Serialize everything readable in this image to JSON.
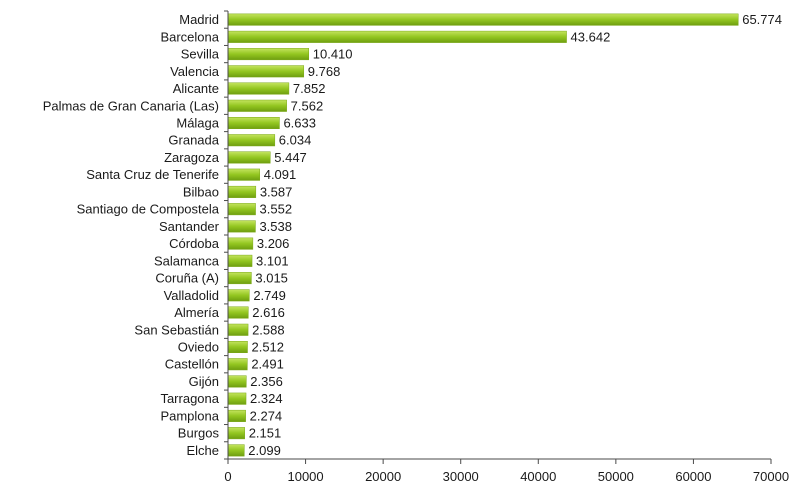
{
  "chart_data": {
    "type": "bar",
    "orientation": "horizontal",
    "title": "",
    "xlabel": "",
    "ylabel": "",
    "xlim": [
      0,
      70000
    ],
    "xticks": [
      0,
      10000,
      20000,
      30000,
      40000,
      50000,
      60000,
      70000
    ],
    "grid": false,
    "legend": "none",
    "bar_color": "#8cc11a",
    "categories": [
      "Madrid",
      "Barcelona",
      "Sevilla",
      "Valencia",
      "Alicante",
      "Palmas de Gran Canaria (Las)",
      "Málaga",
      "Granada",
      "Zaragoza",
      "Santa Cruz de Tenerife",
      "Bilbao",
      "Santiago de Compostela",
      "Santander",
      "Córdoba",
      "Salamanca",
      "Coruña (A)",
      "Valladolid",
      "Almería",
      "San Sebastián",
      "Oviedo",
      "Castellón",
      "Gijón",
      "Tarragona",
      "Pamplona",
      "Burgos",
      "Elche"
    ],
    "values": [
      65774,
      43642,
      10410,
      9768,
      7852,
      7562,
      6633,
      6034,
      5447,
      4091,
      3587,
      3552,
      3538,
      3206,
      3101,
      3015,
      2749,
      2616,
      2588,
      2512,
      2491,
      2356,
      2324,
      2274,
      2151,
      2099
    ],
    "data_labels": [
      "65.774",
      "43.642",
      "10.410",
      "9.768",
      "7.852",
      "7.562",
      "6.633",
      "6.034",
      "5.447",
      "4.091",
      "3.587",
      "3.552",
      "3.538",
      "3.206",
      "3.101",
      "3.015",
      "2.749",
      "2.616",
      "2.588",
      "2.512",
      "2.491",
      "2.356",
      "2.324",
      "2.274",
      "2.151",
      "2.099"
    ]
  }
}
